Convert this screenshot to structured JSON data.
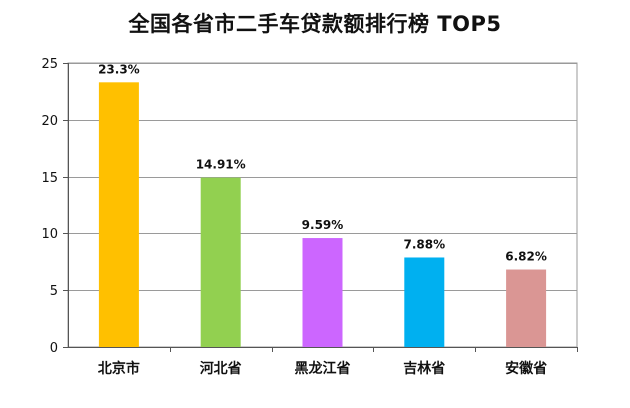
{
  "chart_data": {
    "type": "bar",
    "title": "全国各省市二手车贷款额排行榜 TOP5",
    "xlabel": "",
    "ylabel": "",
    "categories": [
      "北京市",
      "河北省",
      "黑龙江省",
      "吉林省",
      "安徽省"
    ],
    "values": [
      23.3,
      14.91,
      9.59,
      7.88,
      6.82
    ],
    "data_labels": [
      "23.3%",
      "14.91%",
      "9.59%",
      "7.88%",
      "6.82%"
    ],
    "colors": [
      "#FFC000",
      "#92D050",
      "#CC66FF",
      "#00B0F0",
      "#DA9694"
    ],
    "ylim": [
      0,
      25
    ],
    "yticks": [
      0,
      5,
      10,
      15,
      20,
      25
    ],
    "grid": true,
    "legend": "none"
  }
}
